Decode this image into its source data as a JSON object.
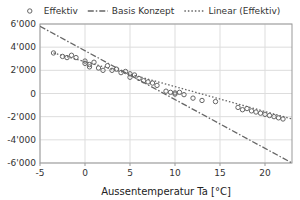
{
  "chart_data": {
    "type": "scatter",
    "xlabel": "Aussentemperatur Ta [°C]",
    "xlim": [
      -5,
      23
    ],
    "ylim": [
      -6000,
      6000
    ],
    "xticks": [
      -5,
      0,
      5,
      10,
      15,
      20
    ],
    "yticks": [
      {
        "value": 6000,
        "label": "6'000"
      },
      {
        "value": 4000,
        "label": "4'000"
      },
      {
        "value": 2000,
        "label": "2'000"
      },
      0,
      {
        "value": -2000,
        "label": "-2'000"
      },
      {
        "value": -4000,
        "label": "-4'000"
      },
      {
        "value": -6000,
        "label": "-6'000"
      }
    ],
    "grid": true,
    "legend": "top",
    "series": [
      {
        "name": "Effektiv",
        "type": "scatter",
        "color": "#666666",
        "marker": "open-circle",
        "x": [
          -3.5,
          -2.5,
          -2,
          -1.5,
          -1,
          0,
          0,
          0.5,
          0.5,
          1,
          1.5,
          2,
          2.5,
          3,
          3.5,
          4,
          4.5,
          5,
          5,
          5.5,
          6,
          6.5,
          7,
          7.5,
          8,
          9,
          9.5,
          10,
          10,
          10.5,
          11,
          12,
          13,
          14.5,
          17,
          17.5,
          18,
          18.5,
          19,
          19.5,
          20,
          20.5,
          21,
          21.5,
          22
        ],
        "values": [
          3500,
          3200,
          3100,
          3300,
          3100,
          2800,
          2600,
          2500,
          2300,
          2700,
          2200,
          2000,
          2400,
          2000,
          2100,
          1800,
          1900,
          1700,
          1400,
          1600,
          1300,
          1100,
          1000,
          900,
          700,
          200,
          100,
          50,
          -50,
          100,
          -100,
          -400,
          -600,
          -700,
          -1200,
          -1400,
          -1300,
          -1500,
          -1600,
          -1700,
          -1800,
          -1900,
          -2000,
          -2100,
          -2200
        ]
      },
      {
        "name": "Basis Konzept",
        "type": "line",
        "color": "#666666",
        "line_style": "dashdot",
        "x": [
          -5,
          23
        ],
        "values": [
          5800,
          -6000
        ]
      },
      {
        "name": "Linear (Effektiv)",
        "type": "line",
        "color": "#666666",
        "line_style": "dotted",
        "x": [
          -3.5,
          23
        ],
        "values": [
          3500,
          -2200
        ]
      }
    ]
  }
}
